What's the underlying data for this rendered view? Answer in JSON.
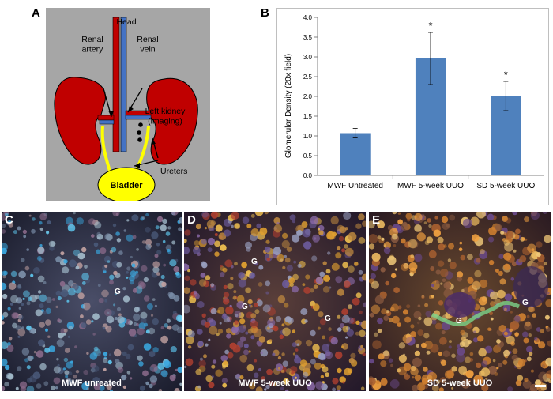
{
  "panel_a": {
    "letter": "A",
    "labels": {
      "head": "Head",
      "renal_artery": "Renal\nartery",
      "renal_vein": "Renal\nvein",
      "left_kidney": "Left kidney\n(imaging)",
      "ureters": "Ureters",
      "bladder": "Bladder"
    },
    "colors": {
      "background": "#a6a6a6",
      "kidney": "#c00000",
      "artery": "#c00000",
      "vein": "#4472c4",
      "ureter": "#ffff00",
      "bladder": "#ffff00"
    }
  },
  "panel_b": {
    "letter": "B"
  },
  "chart_data": {
    "type": "bar",
    "categories": [
      "MWF Untreated",
      "MWF 5-week UUO",
      "SD 5-week UUO"
    ],
    "values": [
      1.07,
      2.96,
      2.01
    ],
    "errors": [
      0.12,
      0.66,
      0.37
    ],
    "annotations": [
      "",
      "*",
      "*"
    ],
    "ylabel": "Glomerular Density (20x field)",
    "xlabel": "",
    "ylim": [
      0,
      4
    ],
    "yticks": [
      "0.0",
      "0.5",
      "1.0",
      "1.5",
      "2.0",
      "2.5",
      "3.0",
      "3.5",
      "4.0"
    ],
    "bar_color": "#4f81bd",
    "grid": false
  },
  "micrographs": [
    {
      "letter": "C",
      "caption": "MWF unreated",
      "g_labels": [
        "G"
      ]
    },
    {
      "letter": "D",
      "caption": "MWF 5-week UUO",
      "g_labels": [
        "G",
        "G",
        "G"
      ]
    },
    {
      "letter": "E",
      "caption": "SD 5-week UUO",
      "g_labels": [
        "G",
        "G"
      ]
    }
  ]
}
